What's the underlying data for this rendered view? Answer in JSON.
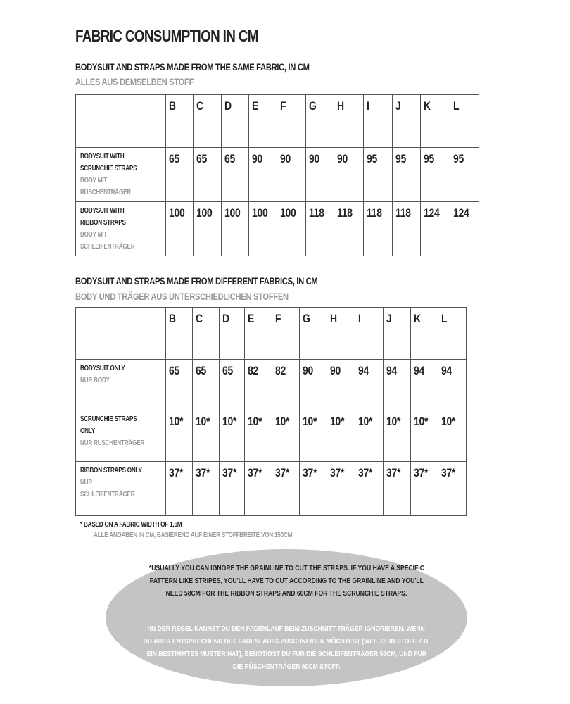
{
  "title": "Fabric consumption in cm",
  "section1": {
    "heading": "Bodysuit and straps made from the same fabric, in cm",
    "subheading": "Alles aus demselben Stoff",
    "sizes": [
      "B",
      "C",
      "D",
      "E",
      "F",
      "G",
      "H",
      "I",
      "J",
      "K",
      "L"
    ],
    "rows": [
      {
        "label_en": "Bodysuit with scrunchie straps",
        "label_de": "Body mit Rüschenträger",
        "values": [
          "65",
          "65",
          "65",
          "90",
          "90",
          "90",
          "90",
          "95",
          "95",
          "95",
          "95"
        ]
      },
      {
        "label_en": "Bodysuit with ribbon straps",
        "label_de": "Body mit Schleifenträger",
        "values": [
          "100",
          "100",
          "100",
          "100",
          "100",
          "118",
          "118",
          "118",
          "118",
          "124",
          "124"
        ]
      }
    ]
  },
  "section2": {
    "heading": "Bodysuit and straps made from different fabrics, in cm",
    "subheading": "Body und Träger aus unterschiedlichen Stoffen",
    "sizes": [
      "B",
      "C",
      "D",
      "E",
      "F",
      "G",
      "H",
      "I",
      "J",
      "K",
      "L"
    ],
    "rows": [
      {
        "label_en": "Bodysuit only",
        "label_de": "Nur Body",
        "values": [
          "65",
          "65",
          "65",
          "82",
          "82",
          "90",
          "90",
          "94",
          "94",
          "94",
          "94"
        ]
      },
      {
        "label_en": "Scrunchie straps only",
        "label_de": "Nur Rüschenträger",
        "values": [
          "10*",
          "10*",
          "10*",
          "10*",
          "10*",
          "10*",
          "10*",
          "10*",
          "10*",
          "10*",
          "10*"
        ]
      },
      {
        "label_en": "Ribbon straps only",
        "label_de": "Nur Schleifenträger",
        "values": [
          "37*",
          "37*",
          "37*",
          "37*",
          "37*",
          "37*",
          "37*",
          "37*",
          "37*",
          "37*",
          "37*"
        ]
      }
    ]
  },
  "footnote_en": "* Based on a fabric width of 1,5m",
  "footnote_de": "Alle Angaben in cm, basierend auf einer Stoffbreite von 150cm",
  "callout": {
    "en": [
      "*Usually you can ignore the grainline to cut the straps. If you have a specific",
      "pattern like stripes, you'll have to cut according to the grainline and you'll",
      "need  58cm for the ribbon straps and 60cm for the scrunchie straps."
    ],
    "de": [
      "*In der Regel kannst du den Fadenlauf beim Zuschnitt Träger ignorieren. Wenn",
      "du aber entsprechend des Fadenlaufs zuschneiden möchtest (weil dein Stoff z.B.",
      "ein bestimmtes Muster hat), benötigst du für die Schleifenträger 58cm, und für",
      "die Rüschenträger 60cm Stoff."
    ],
    "background": "#c4c4c4"
  }
}
